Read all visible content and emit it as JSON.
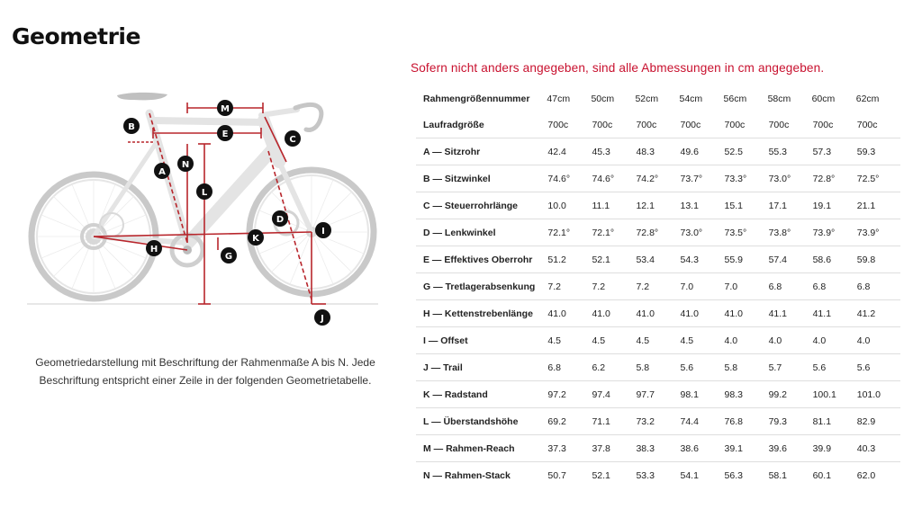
{
  "page": {
    "title": "Geometrie"
  },
  "diagram": {
    "caption_line1": "Geometriedarstellung mit Beschriftung der Rahmenmaße A bis N. Jede",
    "caption_line2": "Beschriftung entspricht einer Zeile in der folgenden Geometrietabelle.",
    "markers": [
      "M",
      "B",
      "E",
      "C",
      "N",
      "A",
      "L",
      "D",
      "I",
      "H",
      "K",
      "G",
      "J"
    ],
    "colors": {
      "frame": "#e5e5e5",
      "marker": "#111111",
      "dimension_line": "#b8262c",
      "tire": "#c7c7c7"
    }
  },
  "table": {
    "note": "Sofern nicht anders angegeben, sind alle Abmessungen in cm angegeben.",
    "header_label": "Rahmengrößennummer",
    "sizes": [
      "47cm",
      "50cm",
      "52cm",
      "54cm",
      "56cm",
      "58cm",
      "60cm",
      "62cm"
    ],
    "rows": [
      {
        "label": "Laufradgröße",
        "values": [
          "700c",
          "700c",
          "700c",
          "700c",
          "700c",
          "700c",
          "700c",
          "700c"
        ]
      },
      {
        "label": "A — Sitzrohr",
        "values": [
          "42.4",
          "45.3",
          "48.3",
          "49.6",
          "52.5",
          "55.3",
          "57.3",
          "59.3"
        ]
      },
      {
        "label": "B — Sitzwinkel",
        "values": [
          "74.6°",
          "74.6°",
          "74.2°",
          "73.7°",
          "73.3°",
          "73.0°",
          "72.8°",
          "72.5°"
        ]
      },
      {
        "label": "C — Steuerrohrlänge",
        "values": [
          "10.0",
          "11.1",
          "12.1",
          "13.1",
          "15.1",
          "17.1",
          "19.1",
          "21.1"
        ]
      },
      {
        "label": "D — Lenkwinkel",
        "values": [
          "72.1°",
          "72.1°",
          "72.8°",
          "73.0°",
          "73.5°",
          "73.8°",
          "73.9°",
          "73.9°"
        ]
      },
      {
        "label": "E — Effektives Oberrohr",
        "values": [
          "51.2",
          "52.1",
          "53.4",
          "54.3",
          "55.9",
          "57.4",
          "58.6",
          "59.8"
        ]
      },
      {
        "label": "G — Tretlagerabsenkung",
        "values": [
          "7.2",
          "7.2",
          "7.2",
          "7.0",
          "7.0",
          "6.8",
          "6.8",
          "6.8"
        ]
      },
      {
        "label": "H — Kettenstrebenlänge",
        "values": [
          "41.0",
          "41.0",
          "41.0",
          "41.0",
          "41.0",
          "41.1",
          "41.1",
          "41.2"
        ]
      },
      {
        "label": "I — Offset",
        "values": [
          "4.5",
          "4.5",
          "4.5",
          "4.5",
          "4.0",
          "4.0",
          "4.0",
          "4.0"
        ]
      },
      {
        "label": "J — Trail",
        "values": [
          "6.8",
          "6.2",
          "5.8",
          "5.6",
          "5.8",
          "5.7",
          "5.6",
          "5.6"
        ]
      },
      {
        "label": "K — Radstand",
        "values": [
          "97.2",
          "97.4",
          "97.7",
          "98.1",
          "98.3",
          "99.2",
          "100.1",
          "101.0"
        ]
      },
      {
        "label": "L — Überstandshöhe",
        "values": [
          "69.2",
          "71.1",
          "73.2",
          "74.4",
          "76.8",
          "79.3",
          "81.1",
          "82.9"
        ]
      },
      {
        "label": "M — Rahmen-Reach",
        "values": [
          "37.3",
          "37.8",
          "38.3",
          "38.6",
          "39.1",
          "39.6",
          "39.9",
          "40.3"
        ]
      },
      {
        "label": "N — Rahmen-Stack",
        "values": [
          "50.7",
          "52.1",
          "53.3",
          "54.1",
          "56.3",
          "58.1",
          "60.1",
          "62.0"
        ]
      }
    ]
  }
}
